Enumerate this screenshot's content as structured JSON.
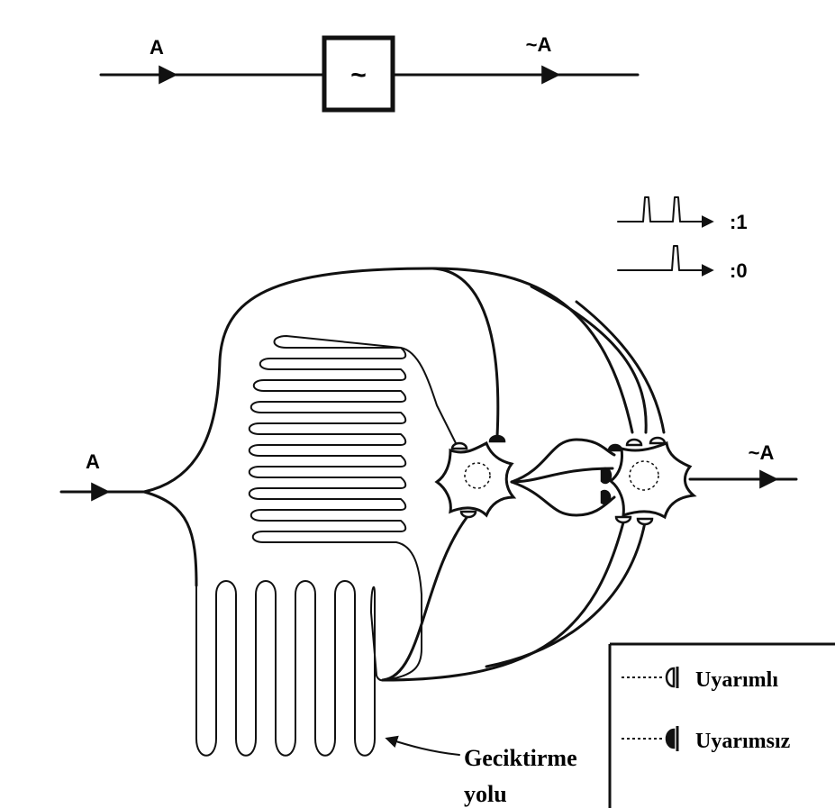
{
  "top": {
    "input_label": "A",
    "gate_symbol": "~",
    "output_label": "~A"
  },
  "pulse_legend": {
    "one_label": ":1",
    "zero_label": ":0"
  },
  "network": {
    "input_label": "A",
    "output_label": "~A",
    "delay_label_line1": "Geciktirme",
    "delay_label_line2": "yolu"
  },
  "synapse_legend": {
    "excitatory_label": "Uyarımlı",
    "inhibitory_label": "Uyarımsız"
  }
}
